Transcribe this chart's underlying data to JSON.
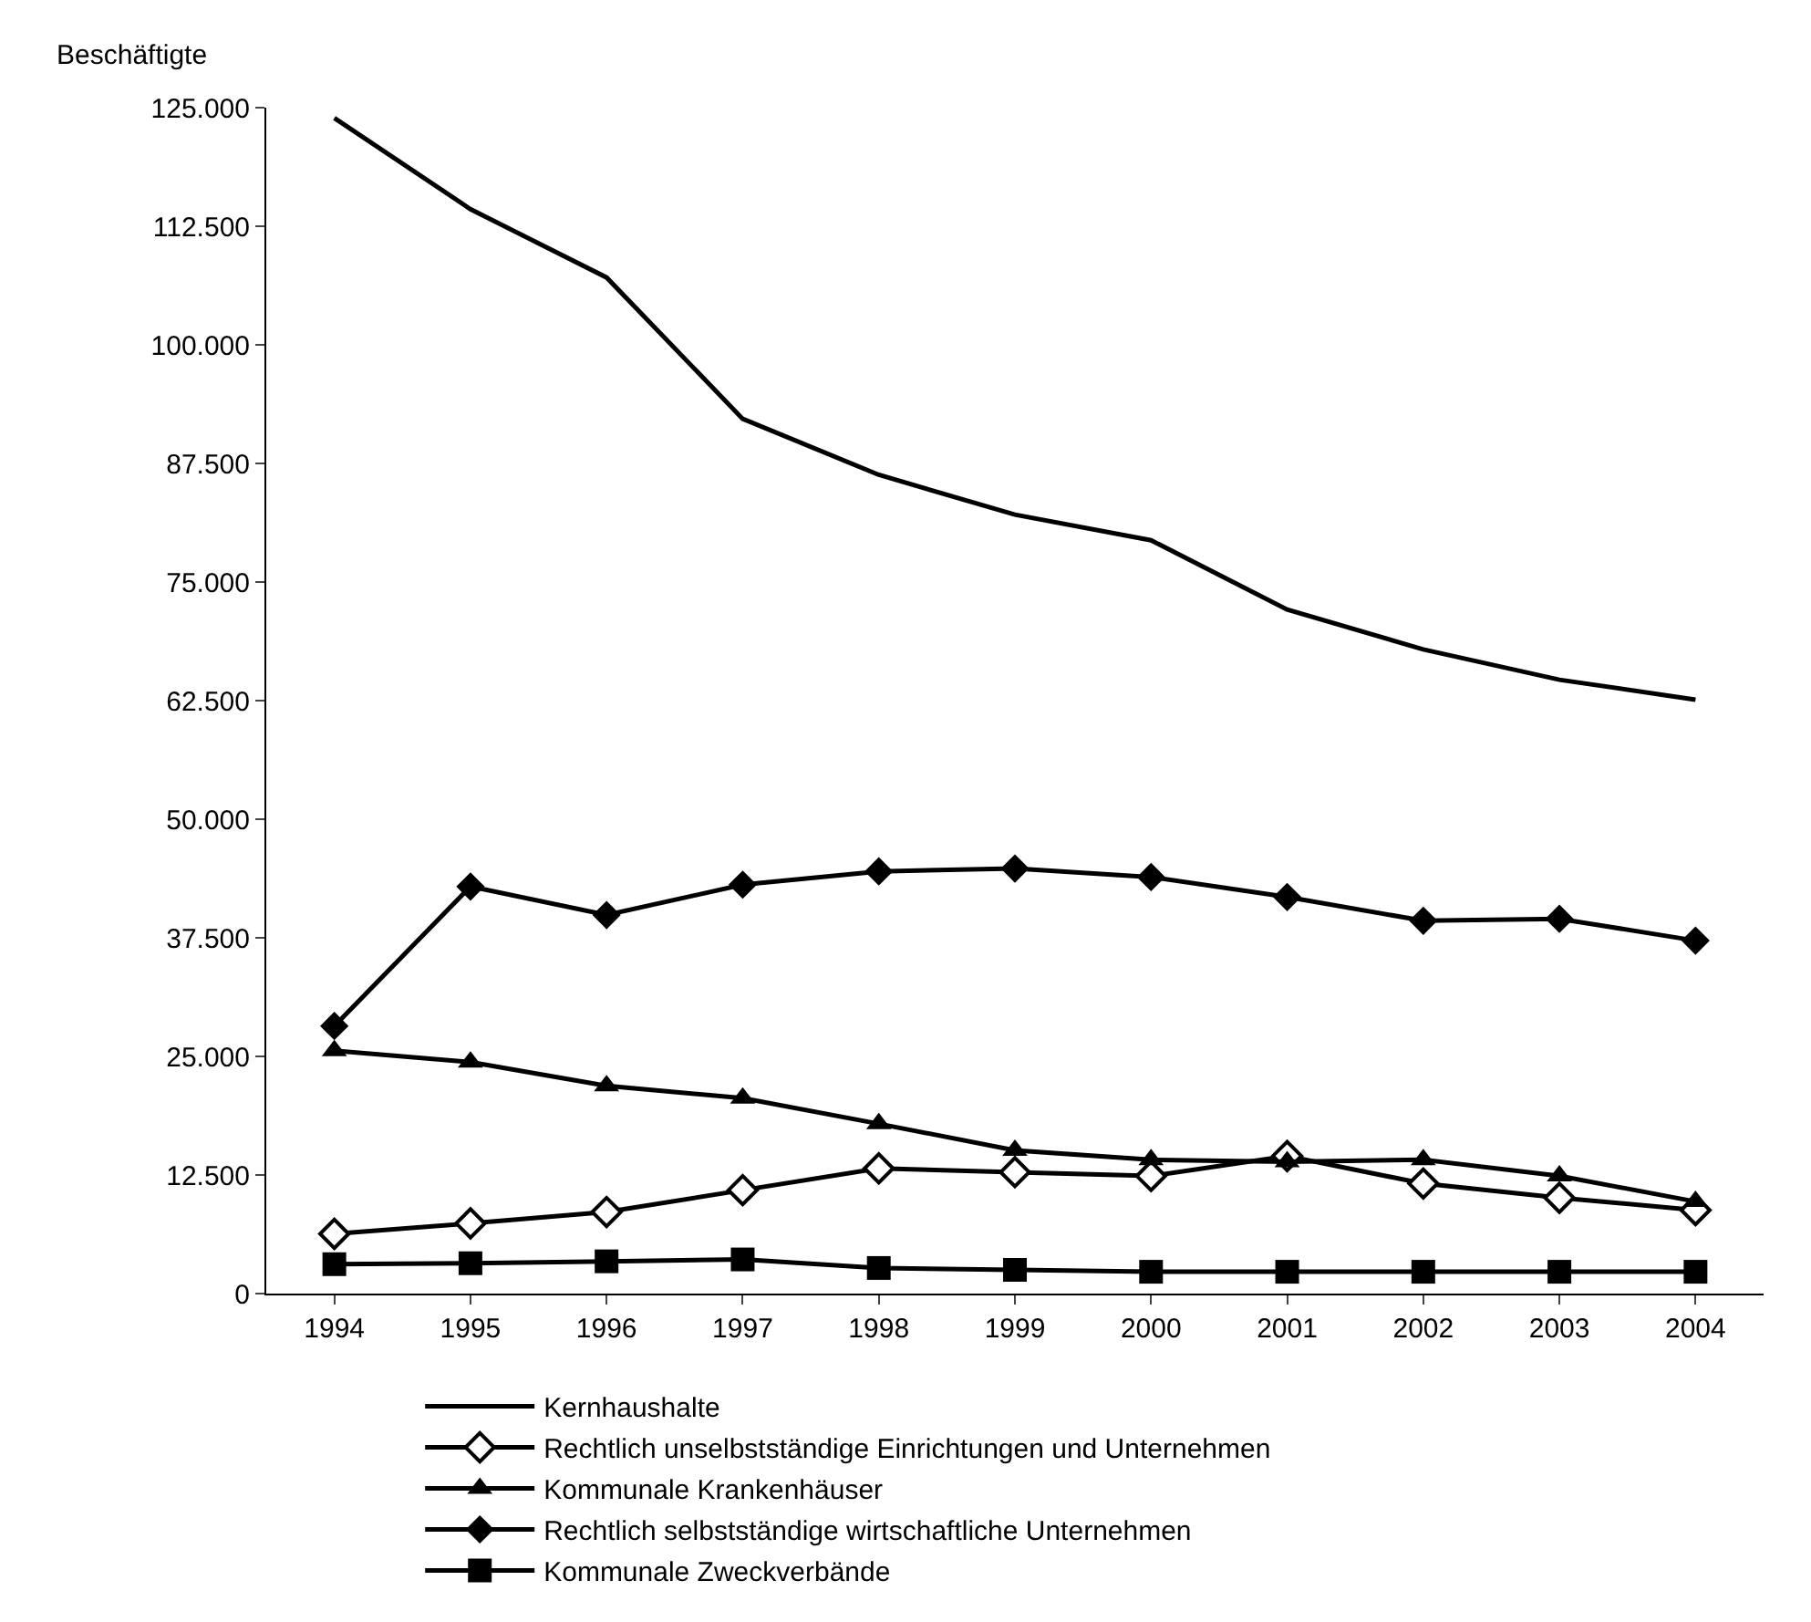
{
  "chart_data": {
    "type": "line",
    "ylabel": "Beschäftigte",
    "categories": [
      "1994",
      "1995",
      "1996",
      "1997",
      "1998",
      "1999",
      "2000",
      "2001",
      "2002",
      "2003",
      "2004"
    ],
    "ylim": [
      0,
      125000
    ],
    "yticks": [
      {
        "value": 0,
        "label": "0"
      },
      {
        "value": 12500,
        "label": "12.500"
      },
      {
        "value": 25000,
        "label": "25.000"
      },
      {
        "value": 37500,
        "label": "37.500"
      },
      {
        "value": 50000,
        "label": "50.000"
      },
      {
        "value": 62500,
        "label": "62.500"
      },
      {
        "value": 75000,
        "label": "75.000"
      },
      {
        "value": 87500,
        "label": "87.500"
      },
      {
        "value": 100000,
        "label": "100.000"
      },
      {
        "value": 112500,
        "label": "112.500"
      },
      {
        "value": 125000,
        "label": "125.000"
      }
    ],
    "legend": "bottom",
    "line_style": "solid",
    "series": [
      {
        "name": "Kernhaushalte",
        "color": "#000000",
        "marker": "none",
        "values": [
          123900,
          114300,
          107100,
          92200,
          86300,
          82100,
          79400,
          72100,
          67900,
          64700,
          62600
        ]
      },
      {
        "name": "Rechtlich unselbstständige Einrichtungen und Unternehmen",
        "color": "#000000",
        "marker": "diamond-open",
        "values": [
          6300,
          7400,
          8600,
          10900,
          13200,
          12800,
          12400,
          14500,
          11600,
          10100,
          8800
        ]
      },
      {
        "name": "Kommunale Krankenhäuser",
        "color": "#000000",
        "marker": "triangle",
        "values": [
          25600,
          24400,
          21900,
          20600,
          17900,
          15100,
          14100,
          13900,
          14100,
          12400,
          9700
        ]
      },
      {
        "name": "Rechtlich selbstständige wirtschaftliche Unternehmen",
        "color": "#000000",
        "marker": "diamond",
        "values": [
          28200,
          42900,
          39900,
          43100,
          44500,
          44800,
          43900,
          41800,
          39300,
          39500,
          37200
        ]
      },
      {
        "name": "Kommunale Zweckverbände",
        "color": "#000000",
        "marker": "square",
        "values": [
          3100,
          3200,
          3400,
          3600,
          2700,
          2500,
          2300,
          2300,
          2300,
          2300,
          2300
        ]
      }
    ]
  }
}
